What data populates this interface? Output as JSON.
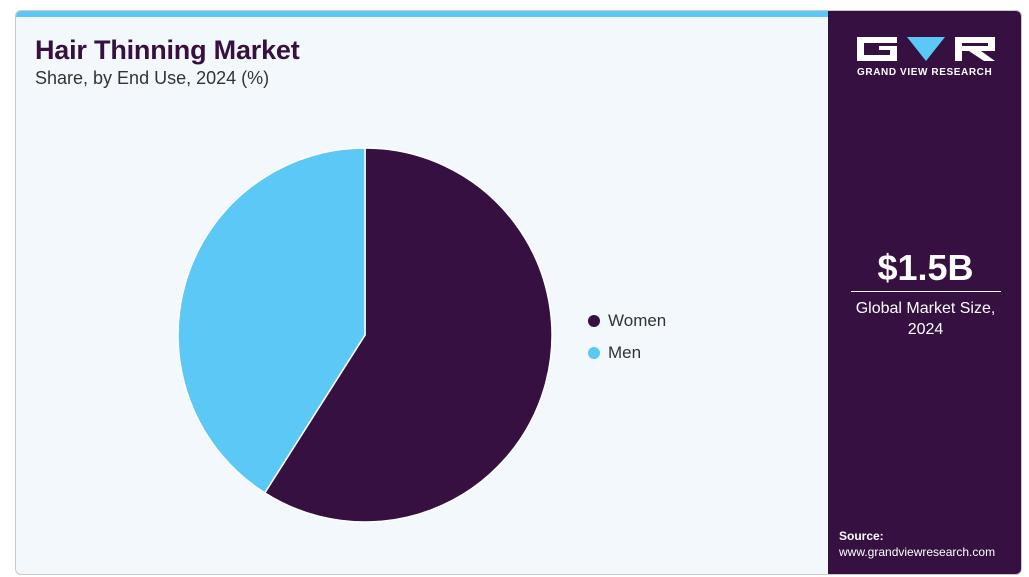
{
  "header": {
    "title": "Hair Thinning Market",
    "subtitle": "Share, by End Use, 2024 (%)"
  },
  "chart_data": {
    "type": "pie",
    "categories": [
      "Women",
      "Men"
    ],
    "values": [
      59,
      41
    ],
    "colors": [
      "#351040",
      "#5bc8f5"
    ],
    "start_angle_deg": 0,
    "direction": "clockwise",
    "legend_position": "right"
  },
  "sidebar": {
    "brand": "GRAND VIEW RESEARCH",
    "market_size_value": "$1.5B",
    "market_size_label": "Global Market Size, 2024",
    "source_label": "Source:",
    "source_url": "www.grandviewresearch.com",
    "accent_color": "#5bc8f5",
    "background_color": "#351040"
  }
}
